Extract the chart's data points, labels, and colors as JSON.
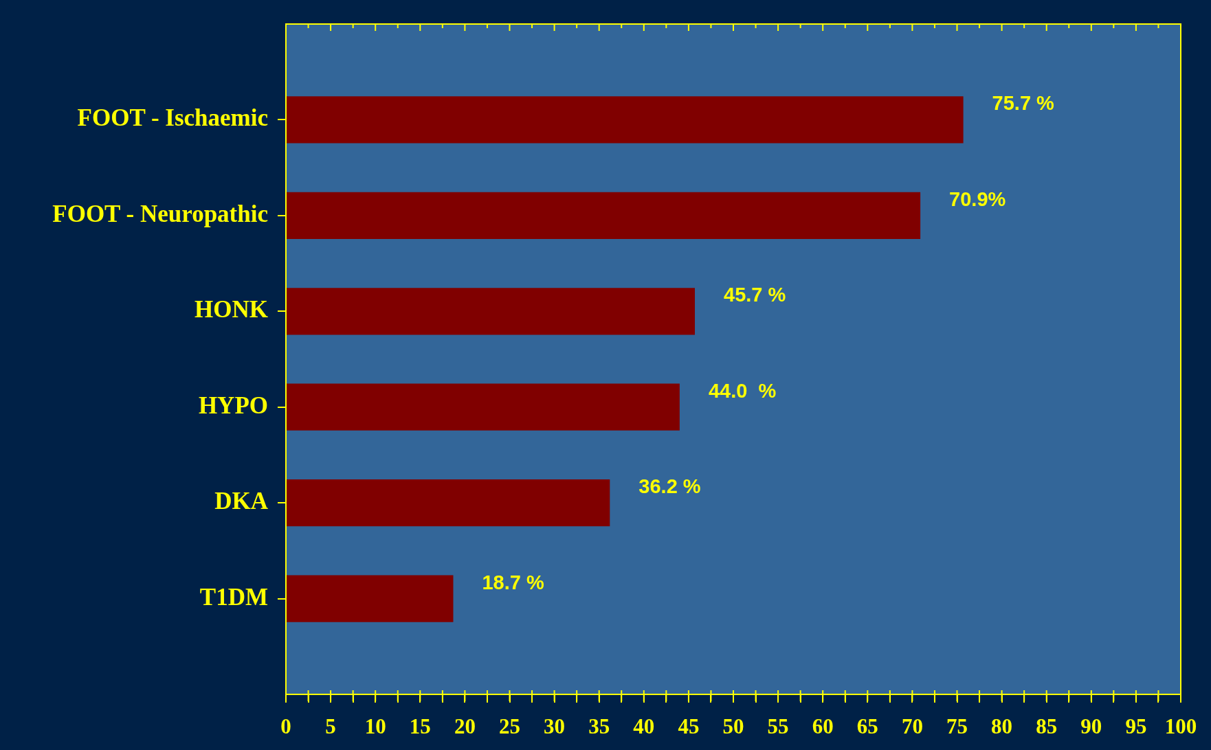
{
  "chart_data": {
    "type": "bar",
    "orientation": "horizontal",
    "categories": [
      "FOOT - Ischaemic",
      "FOOT - Neuropathic",
      "HONK",
      "HYPO",
      "DKA",
      "T1DM"
    ],
    "values": [
      75.7,
      70.9,
      45.7,
      44.0,
      36.2,
      18.7
    ],
    "value_labels": [
      "75.7 %",
      "70.9%",
      "45.7 %",
      "44.0  %",
      "36.2 %",
      "18.7 %"
    ],
    "color": "#800000",
    "xlim": [
      0,
      100
    ],
    "xticks": [
      0,
      {
        "value": 2.5,
        "label": null
      },
      5,
      {
        "value": 7.5,
        "label": null
      },
      10,
      {
        "value": 12.5,
        "label": null
      },
      15,
      {
        "value": 17.5,
        "label": null
      },
      20,
      {
        "value": 22.5,
        "label": null
      },
      25,
      {
        "value": 27.5,
        "label": null
      },
      30,
      {
        "value": 32.5,
        "label": null
      },
      35,
      {
        "value": 37.5,
        "label": null
      },
      40,
      {
        "value": 42.5,
        "label": null
      },
      45,
      {
        "value": 47.5,
        "label": null
      },
      50,
      {
        "value": 52.5,
        "label": null
      },
      55,
      {
        "value": 57.5,
        "label": null
      },
      60,
      {
        "value": 62.5,
        "label": null
      },
      65,
      {
        "value": 67.5,
        "label": null
      },
      70,
      {
        "value": 72.5,
        "label": null
      },
      75,
      {
        "value": 77.5,
        "label": null
      },
      80,
      {
        "value": 82.5,
        "label": null
      },
      85,
      {
        "value": 87.5,
        "label": null
      },
      90,
      {
        "value": 92.5,
        "label": null
      },
      95,
      {
        "value": 97.5,
        "label": null
      },
      100
    ],
    "grid": false,
    "legend": false
  }
}
